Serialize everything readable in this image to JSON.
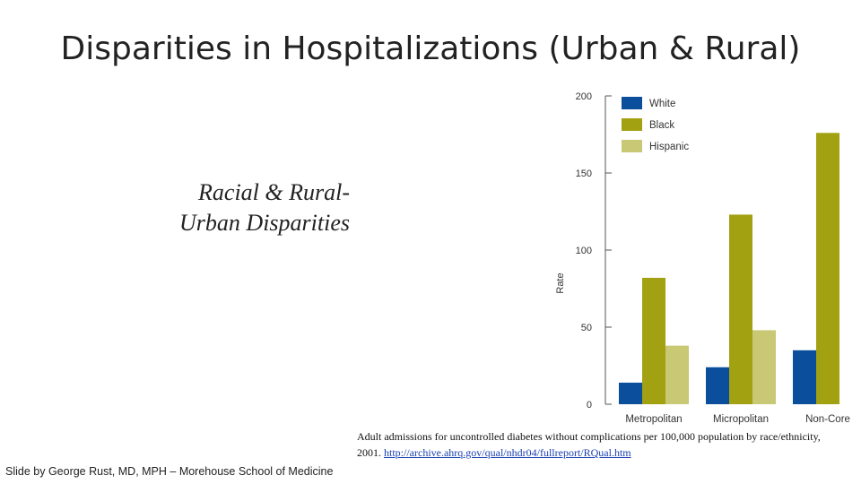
{
  "slide": {
    "title": "Disparities in Hospitalizations (Urban & Rural)",
    "subtitle_line1": "Racial & Rural-",
    "subtitle_line2": "Urban Disparities",
    "caption_text": "Adult admissions for uncontrolled diabetes without complications per 100,000 population by race/ethnicity, 2001. ",
    "caption_link": "http://archive.ahrq.gov/qual/nhdr04/fullreport/RQual.htm",
    "credit": "Slide by George Rust, MD, MPH – Morehouse School of  Medicine"
  },
  "chart_data": {
    "type": "bar",
    "title": "",
    "xlabel": "",
    "ylabel": "Rate",
    "categories": [
      "Metropolitan",
      "Micropolitan",
      "Non-Core"
    ],
    "series": [
      {
        "name": "White",
        "color": "#0b4f9c",
        "values": [
          14,
          24,
          35
        ]
      },
      {
        "name": "Black",
        "color": "#a2a111",
        "values": [
          82,
          123,
          176
        ]
      },
      {
        "name": "Hispanic",
        "color": "#c9c874",
        "values": [
          38,
          48,
          null
        ]
      }
    ],
    "ylim": [
      0,
      200
    ],
    "yticks": [
      0,
      50,
      100,
      150,
      200
    ],
    "grid": false,
    "legend": "top-left"
  }
}
